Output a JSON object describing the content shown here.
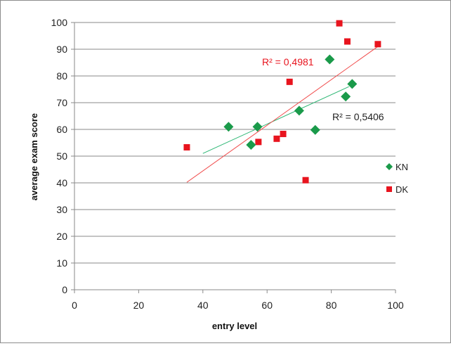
{
  "chart_data": {
    "type": "scatter",
    "xlabel": "entry level",
    "ylabel": "average exam score",
    "xlim": [
      0,
      100
    ],
    "ylim": [
      0,
      100
    ],
    "x_ticks": [
      0,
      20,
      40,
      60,
      80,
      100
    ],
    "y_ticks": [
      0,
      10,
      20,
      30,
      40,
      50,
      60,
      70,
      80,
      90,
      100
    ],
    "grid": "horizontal",
    "legend_position": "right",
    "series": [
      {
        "name": "KN",
        "marker": "diamond",
        "color": "#1a9a4a",
        "trend_color": "#2bb673",
        "points": [
          {
            "x": 48,
            "y": 61
          },
          {
            "x": 55,
            "y": 54.2
          },
          {
            "x": 57,
            "y": 61
          },
          {
            "x": 70,
            "y": 67
          },
          {
            "x": 75,
            "y": 59.8
          },
          {
            "x": 79.5,
            "y": 86.2
          },
          {
            "x": 84.5,
            "y": 72.3
          },
          {
            "x": 86.5,
            "y": 77
          }
        ],
        "trendline": {
          "from": [
            40,
            51
          ],
          "to": [
            85.5,
            76
          ]
        },
        "r_squared_label": "R² = 0,5406"
      },
      {
        "name": "DK",
        "marker": "square",
        "color": "#e8141e",
        "trend_color": "#f04a4a",
        "points": [
          {
            "x": 35,
            "y": 53.3
          },
          {
            "x": 57.3,
            "y": 55.3
          },
          {
            "x": 63,
            "y": 56.5
          },
          {
            "x": 65,
            "y": 58.3
          },
          {
            "x": 67,
            "y": 77.8
          },
          {
            "x": 72,
            "y": 41
          },
          {
            "x": 82.5,
            "y": 99.7
          },
          {
            "x": 85,
            "y": 92.9
          },
          {
            "x": 94.5,
            "y": 91.9
          }
        ],
        "trendline": {
          "from": [
            35,
            40.2
          ],
          "to": [
            94.5,
            91
          ]
        },
        "r_squared_label": "R² = 0,4981"
      }
    ]
  }
}
